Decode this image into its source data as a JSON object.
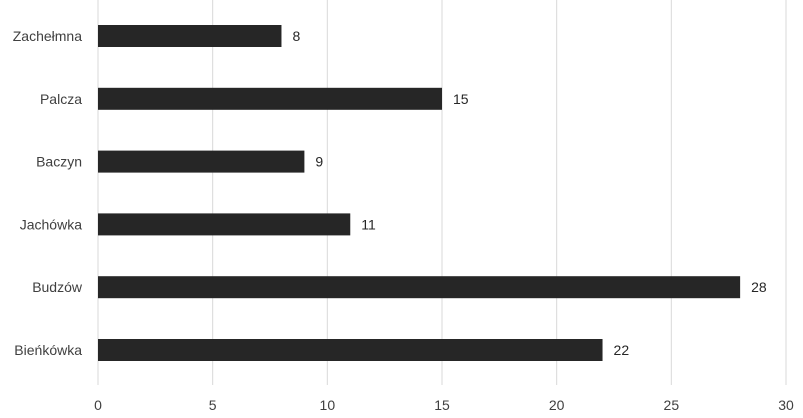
{
  "chart_data": {
    "type": "bar",
    "orientation": "horizontal",
    "categories": [
      "Zachełmna",
      "Palcza",
      "Baczyn",
      "Jachówka",
      "Budzów",
      "Bieńkówka"
    ],
    "values": [
      8,
      15,
      9,
      11,
      28,
      22
    ],
    "xticks": [
      "0",
      "5",
      "10",
      "15",
      "20",
      "25",
      "30"
    ],
    "xlim": [
      0,
      30
    ],
    "grid": "vertical",
    "legend": "none",
    "bar_color": "#262626",
    "grid_color": "#d9d9d9"
  }
}
